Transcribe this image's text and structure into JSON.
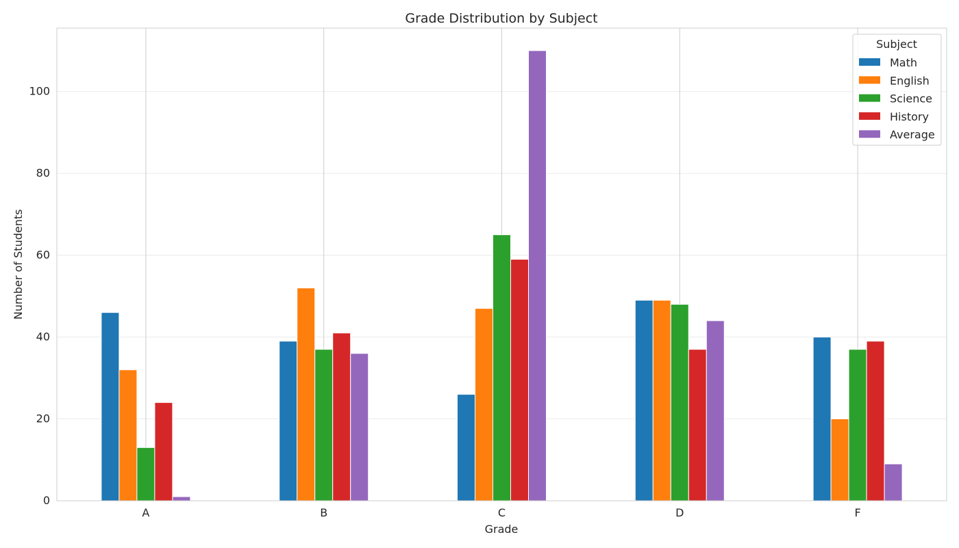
{
  "chart_data": {
    "type": "bar",
    "title": "Grade Distribution by Subject",
    "xlabel": "Grade",
    "ylabel": "Number of Students",
    "categories": [
      "A",
      "B",
      "C",
      "D",
      "F"
    ],
    "ylim": [
      0,
      115.5
    ],
    "yticks": [
      0,
      20,
      40,
      60,
      80,
      100
    ],
    "grid": true,
    "legend": {
      "title": "Subject",
      "placement": "top-right"
    },
    "series": [
      {
        "name": "Math",
        "color": "#1f77b4",
        "values": [
          46,
          39,
          26,
          49,
          40
        ]
      },
      {
        "name": "English",
        "color": "#ff7f0e",
        "values": [
          32,
          52,
          47,
          49,
          20
        ]
      },
      {
        "name": "Science",
        "color": "#2ca02c",
        "values": [
          13,
          37,
          65,
          48,
          37
        ]
      },
      {
        "name": "History",
        "color": "#d62728",
        "values": [
          24,
          41,
          59,
          37,
          39
        ]
      },
      {
        "name": "Average",
        "color": "#9467bd",
        "values": [
          1,
          36,
          110,
          44,
          9
        ]
      }
    ]
  }
}
